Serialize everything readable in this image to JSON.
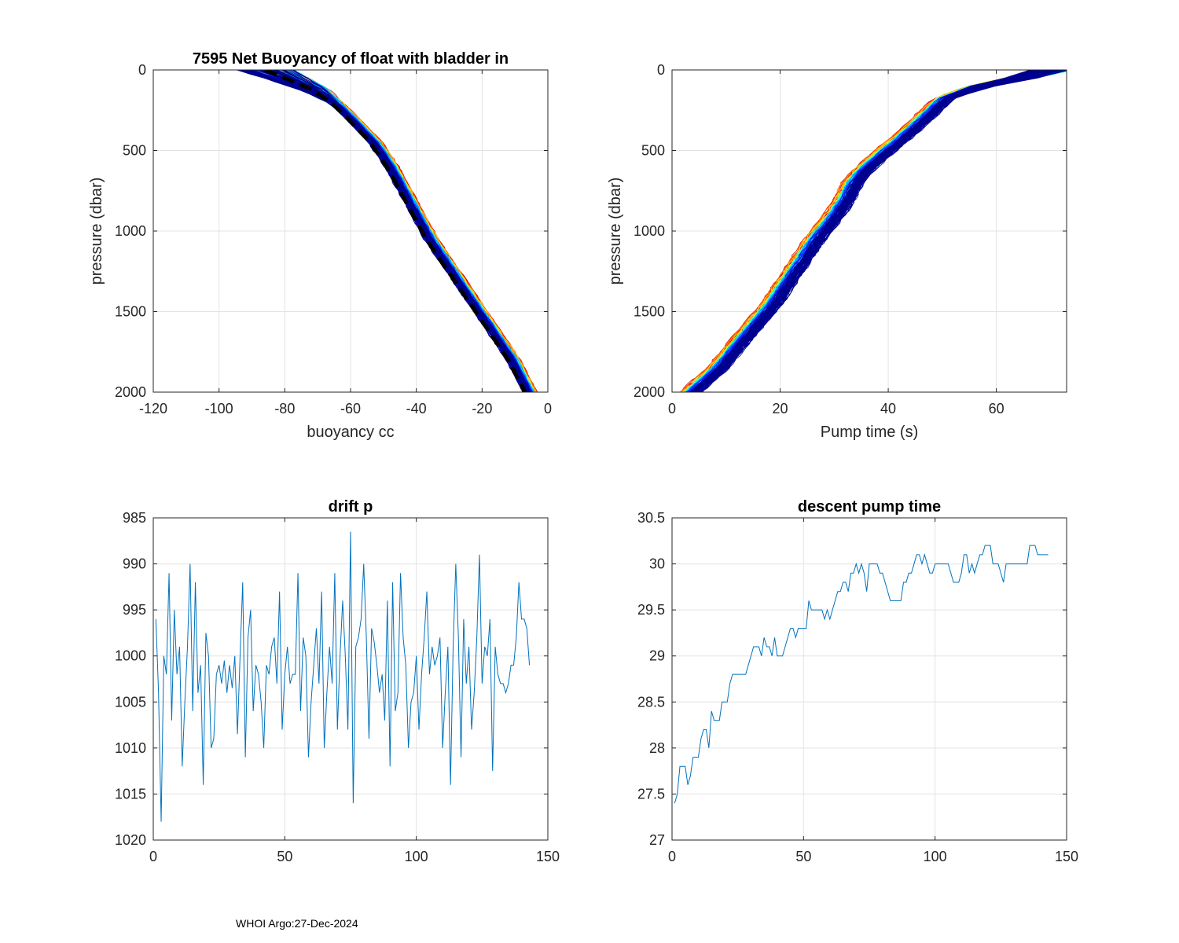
{
  "footer": "WHOI Argo:27-Dec-2024",
  "colors": {
    "series": "#0072bd",
    "mean": "#000000",
    "grid": "#e3e3e3",
    "axis": "#262626"
  },
  "chart_data": [
    {
      "id": "buoyancy",
      "type": "line",
      "title": "7595 Net Buoyancy of float with bladder in",
      "xlabel": "buoyancy cc",
      "ylabel": "pressure (dbar)",
      "xlim": [
        -120,
        0
      ],
      "ylim": [
        0,
        2000
      ],
      "y_reversed": true,
      "xticks": [
        -120,
        -100,
        -80,
        -60,
        -40,
        -20,
        0
      ],
      "yticks": [
        0,
        500,
        1000,
        1500,
        2000
      ],
      "grid": true,
      "colormap": [
        "#00008f",
        "#0020ff",
        "#00a0ff",
        "#20ffdf",
        "#9fff60",
        "#ffdf00",
        "#ff6000",
        "#df0000"
      ],
      "mean_profile": {
        "style": "dashed",
        "points": [
          [
            -86,
            0
          ],
          [
            -80,
            50
          ],
          [
            -72,
            120
          ],
          [
            -66,
            200
          ],
          [
            -60,
            320
          ],
          [
            -54,
            450
          ],
          [
            -49,
            600
          ],
          [
            -45,
            750
          ],
          [
            -41,
            900
          ],
          [
            -37,
            1050
          ],
          [
            -32,
            1200
          ],
          [
            -27,
            1350
          ],
          [
            -22,
            1500
          ],
          [
            -17,
            1650
          ],
          [
            -12,
            1800
          ],
          [
            -7,
            2000
          ]
        ]
      }
    },
    {
      "id": "pump_profile",
      "type": "line",
      "title": "",
      "xlabel": "Pump time (s)",
      "ylabel": "pressure (dbar)",
      "xlim": [
        0,
        73
      ],
      "ylim": [
        0,
        2000
      ],
      "y_reversed": true,
      "xticks": [
        0,
        20,
        40,
        60
      ],
      "yticks": [
        0,
        500,
        1000,
        1500,
        2000
      ],
      "grid": true,
      "colormap": [
        "#00008f",
        "#0020ff",
        "#00a0ff",
        "#20ffdf",
        "#9fff60",
        "#ffdf00",
        "#ff6000",
        "#df0000"
      ],
      "mean_profile": {
        "points": [
          [
            70,
            0
          ],
          [
            65,
            50
          ],
          [
            58,
            100
          ],
          [
            52,
            170
          ],
          [
            48,
            300
          ],
          [
            44,
            420
          ],
          [
            40,
            530
          ],
          [
            37,
            620
          ],
          [
            35,
            700
          ],
          [
            33.5,
            800
          ],
          [
            32,
            880
          ],
          [
            28,
            1050
          ],
          [
            24,
            1250
          ],
          [
            20,
            1450
          ],
          [
            15,
            1650
          ],
          [
            10,
            1850
          ],
          [
            5,
            2000
          ]
        ]
      }
    },
    {
      "id": "drift_p",
      "type": "line",
      "title": "drift p",
      "xlabel": "",
      "ylabel": "",
      "xlim": [
        0,
        150
      ],
      "ylim": [
        985,
        1020
      ],
      "y_reversed": true,
      "xticks": [
        0,
        50,
        100,
        150
      ],
      "yticks": [
        985,
        990,
        995,
        1000,
        1005,
        1010,
        1015,
        1020
      ],
      "grid": true,
      "x": [
        1,
        2,
        3,
        4,
        5,
        6,
        7,
        8,
        9,
        10,
        11,
        12,
        13,
        14,
        15,
        16,
        17,
        18,
        19,
        20,
        21,
        22,
        23,
        24,
        25,
        26,
        27,
        28,
        29,
        30,
        31,
        32,
        33,
        34,
        35,
        36,
        37,
        38,
        39,
        40,
        41,
        42,
        43,
        44,
        45,
        46,
        47,
        48,
        49,
        50,
        51,
        52,
        53,
        54,
        55,
        56,
        57,
        58,
        59,
        60,
        61,
        62,
        63,
        64,
        65,
        66,
        67,
        68,
        69,
        70,
        71,
        72,
        73,
        74,
        75,
        76,
        77,
        78,
        79,
        80,
        81,
        82,
        83,
        84,
        85,
        86,
        87,
        88,
        89,
        90,
        91,
        92,
        93,
        94,
        95,
        96,
        97,
        98,
        99,
        100,
        101,
        102,
        103,
        104,
        105,
        106,
        107,
        108,
        109,
        110,
        111,
        112,
        113,
        114,
        115,
        116,
        117,
        118,
        119,
        120,
        121,
        122,
        123,
        124,
        125,
        126,
        127,
        128,
        129,
        130,
        131,
        132,
        133,
        134,
        135,
        136,
        137,
        138,
        139,
        140,
        141,
        142,
        143
      ],
      "values": [
        996,
        1004,
        1018,
        1000,
        1002,
        991,
        1007,
        995,
        1002,
        999,
        1012,
        1005,
        999,
        990,
        1006,
        992,
        1004,
        1001,
        1014,
        997.5,
        1000,
        1010,
        1009,
        1002,
        1001,
        1003,
        1000.5,
        1004,
        1001,
        1003.5,
        1000,
        1008.5,
        1000,
        992,
        1011,
        998,
        995,
        1006,
        1001,
        1002,
        1005,
        1010,
        1001,
        1002,
        999,
        998,
        1003,
        993,
        1008,
        1002,
        999,
        1003,
        1002,
        1002,
        991,
        1006,
        998,
        1000,
        1011,
        1005,
        1001,
        997,
        1003,
        993,
        1010,
        1004,
        999,
        1003,
        991,
        1008,
        1000,
        994,
        1000,
        1008,
        986.5,
        1016,
        999,
        998,
        996,
        990,
        998,
        1009,
        997,
        998.5,
        1001,
        1004,
        1002,
        1007,
        994,
        1012,
        992,
        1006,
        1004,
        991,
        998,
        1001,
        1010,
        1005,
        1004,
        1000,
        1008,
        1002,
        998,
        993,
        1002,
        999,
        1001,
        1000,
        998,
        1010,
        1004,
        999,
        1014,
        999,
        990,
        998,
        1011,
        996,
        1003,
        999,
        1008,
        1004,
        998,
        989,
        1003,
        999,
        1000,
        996,
        1012.5,
        999,
        1002,
        1003,
        1003,
        1004,
        1003,
        1001,
        1001,
        998,
        992,
        996,
        996,
        997,
        1001
      ]
    },
    {
      "id": "descent_pump",
      "type": "line",
      "title": "descent pump time",
      "xlabel": "",
      "ylabel": "",
      "xlim": [
        0,
        150
      ],
      "ylim": [
        27,
        30.5
      ],
      "xticks": [
        0,
        50,
        100,
        150
      ],
      "yticks": [
        27,
        27.5,
        28,
        28.5,
        29,
        29.5,
        30,
        30.5
      ],
      "grid": true,
      "x": [
        1,
        2,
        3,
        4,
        5,
        6,
        7,
        8,
        9,
        10,
        11,
        12,
        13,
        14,
        15,
        16,
        17,
        18,
        19,
        20,
        21,
        22,
        23,
        24,
        25,
        26,
        27,
        28,
        29,
        30,
        31,
        32,
        33,
        34,
        35,
        36,
        37,
        38,
        39,
        40,
        41,
        42,
        43,
        44,
        45,
        46,
        47,
        48,
        49,
        50,
        51,
        52,
        53,
        54,
        55,
        56,
        57,
        58,
        59,
        60,
        61,
        62,
        63,
        64,
        65,
        66,
        67,
        68,
        69,
        70,
        71,
        72,
        73,
        74,
        75,
        76,
        77,
        78,
        79,
        80,
        81,
        82,
        83,
        84,
        85,
        86,
        87,
        88,
        89,
        90,
        91,
        92,
        93,
        94,
        95,
        96,
        97,
        98,
        99,
        100,
        101,
        102,
        103,
        104,
        105,
        106,
        107,
        108,
        109,
        110,
        111,
        112,
        113,
        114,
        115,
        116,
        117,
        118,
        119,
        120,
        121,
        122,
        123,
        124,
        125,
        126,
        127,
        128,
        129,
        130,
        131,
        132,
        133,
        134,
        135,
        136,
        137,
        138,
        139,
        140,
        141,
        142,
        143
      ],
      "values": [
        27.4,
        27.5,
        27.8,
        27.8,
        27.8,
        27.6,
        27.7,
        27.9,
        27.9,
        27.9,
        28.1,
        28.2,
        28.2,
        28.0,
        28.4,
        28.3,
        28.3,
        28.3,
        28.5,
        28.5,
        28.5,
        28.7,
        28.8,
        28.8,
        28.8,
        28.8,
        28.8,
        28.8,
        28.9,
        29.0,
        29.1,
        29.1,
        29.1,
        29.0,
        29.2,
        29.1,
        29.1,
        29.0,
        29.2,
        29.0,
        29.0,
        29.0,
        29.1,
        29.2,
        29.3,
        29.3,
        29.2,
        29.3,
        29.3,
        29.3,
        29.3,
        29.6,
        29.5,
        29.5,
        29.5,
        29.5,
        29.5,
        29.4,
        29.5,
        29.4,
        29.5,
        29.6,
        29.7,
        29.7,
        29.8,
        29.8,
        29.7,
        29.9,
        29.9,
        30.0,
        29.9,
        30.0,
        29.9,
        29.7,
        30.0,
        30.0,
        30.0,
        30.0,
        29.9,
        29.9,
        29.8,
        29.7,
        29.6,
        29.6,
        29.6,
        29.6,
        29.6,
        29.8,
        29.8,
        29.9,
        29.9,
        30.0,
        30.1,
        30.1,
        30.0,
        30.1,
        30.0,
        29.9,
        29.9,
        30.0,
        30.0,
        30.0,
        30.0,
        30.0,
        30.0,
        29.9,
        29.8,
        29.8,
        29.8,
        29.9,
        30.1,
        30.1,
        29.9,
        30.0,
        29.9,
        30.0,
        30.1,
        30.1,
        30.2,
        30.2,
        30.2,
        30.0,
        30.0,
        30.0,
        29.9,
        29.8,
        30.0,
        30.0,
        30.0,
        30.0,
        30.0,
        30.0,
        30.0,
        30.0,
        30.0,
        30.2,
        30.2,
        30.2,
        30.1,
        30.1,
        30.1,
        30.1,
        30.1
      ]
    }
  ]
}
